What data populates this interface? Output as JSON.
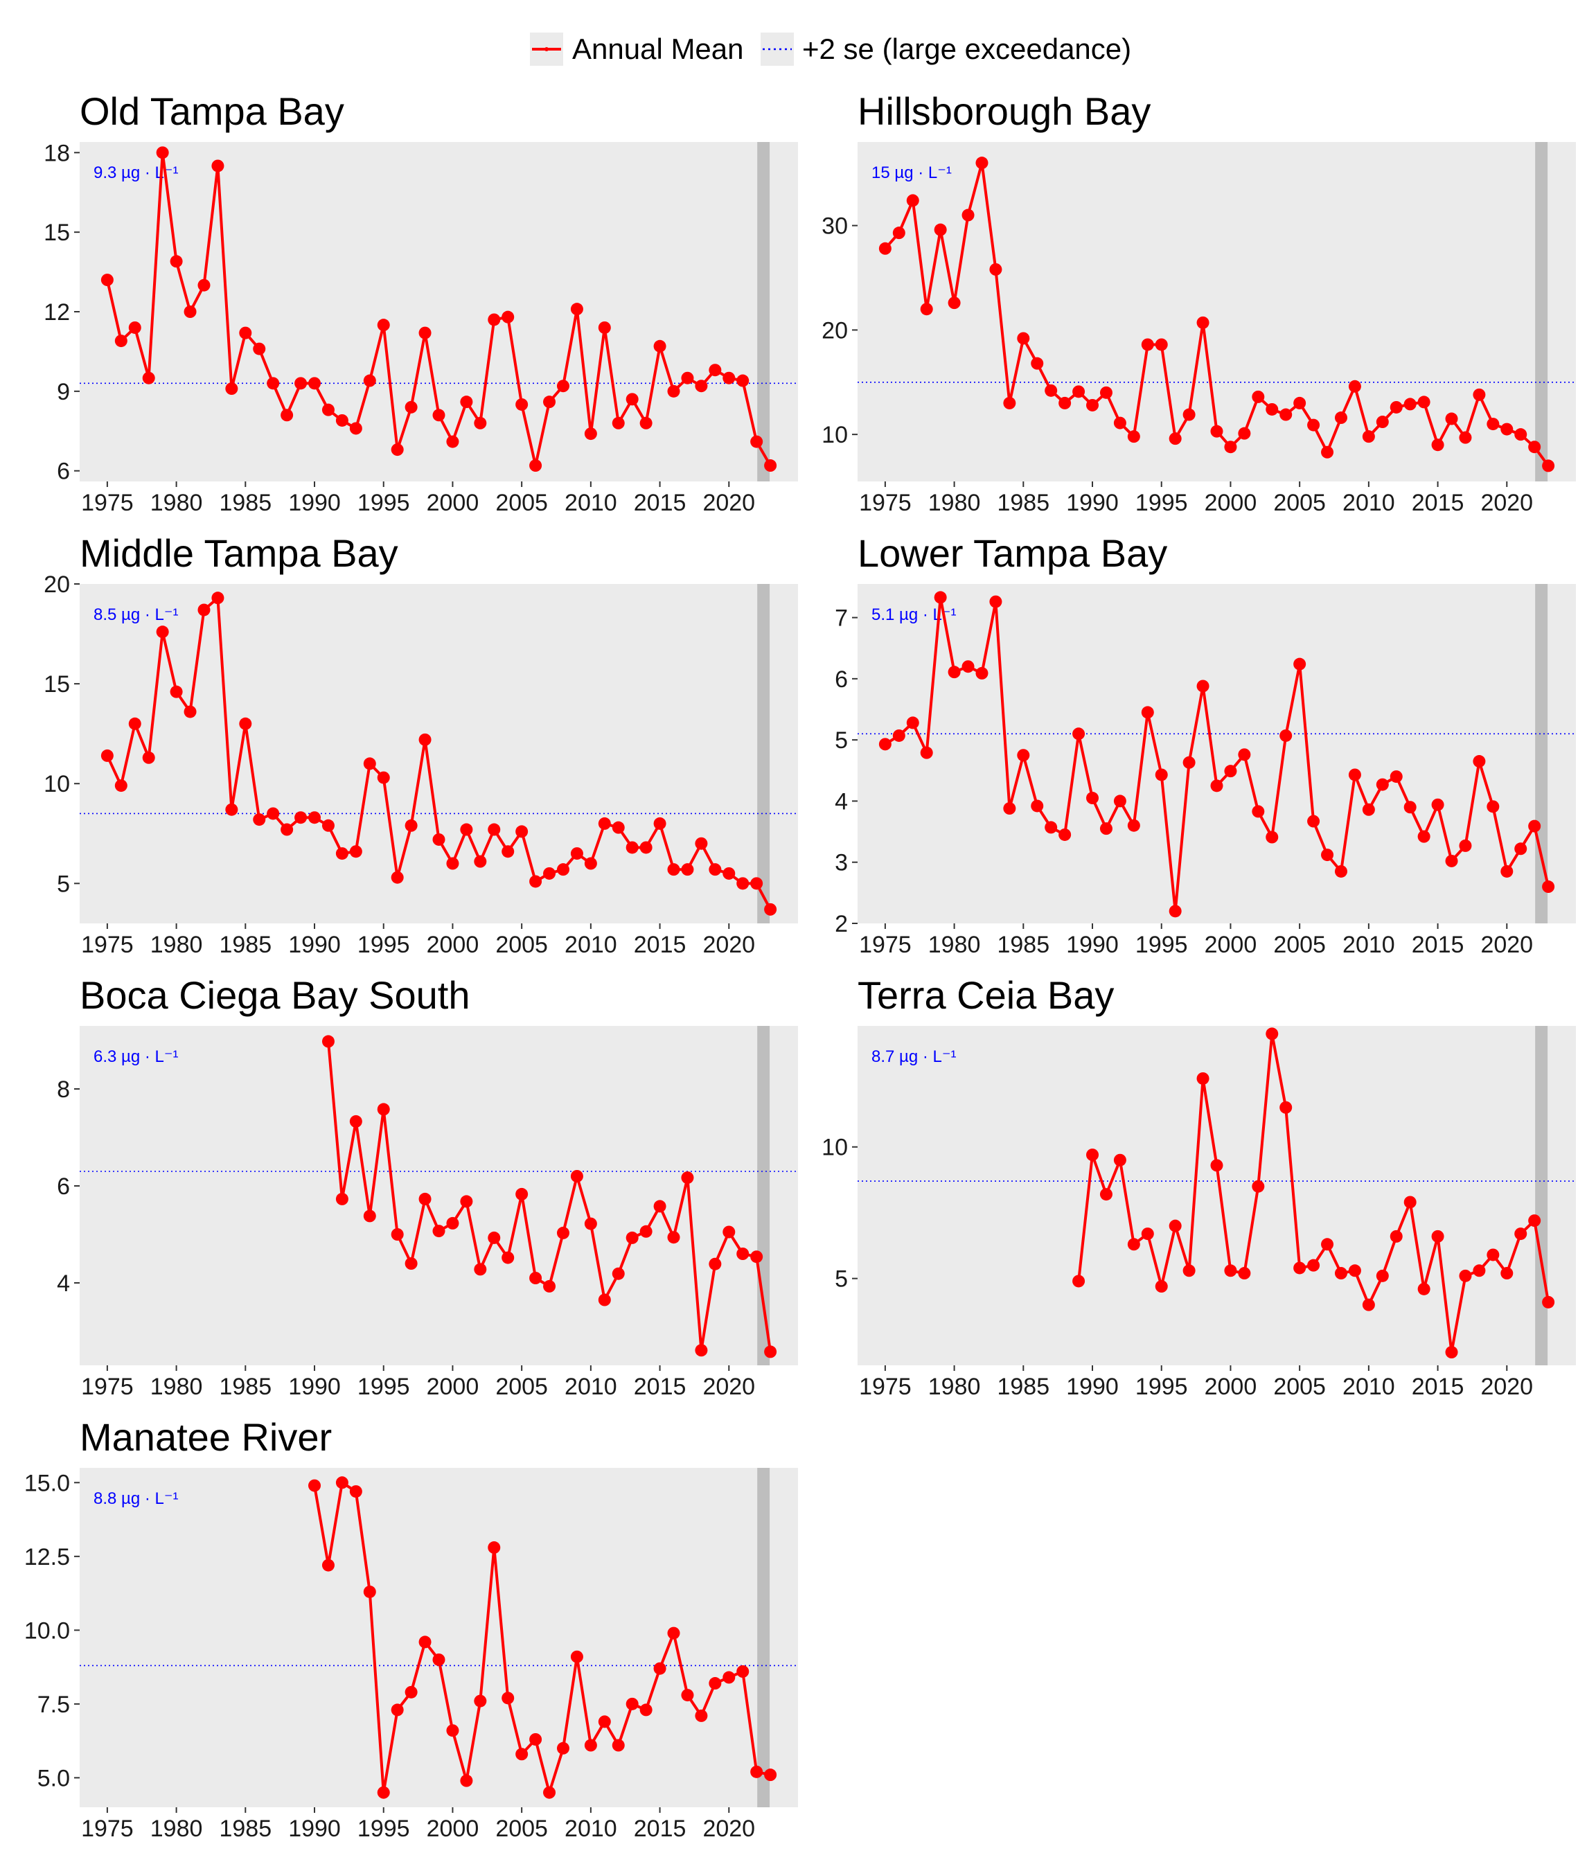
{
  "legend": {
    "series_label": "Annual Mean",
    "threshold_label": "+2 se (large exceedance)"
  },
  "colors": {
    "series": "#ff0000",
    "threshold": "#0000ff",
    "panel_background": "#ebebeb",
    "highlight_band": "#bebebe",
    "gridlines": "none"
  },
  "chart_data": [
    {
      "type": "line",
      "title": "Old Tampa Bay",
      "threshold": 9.3,
      "threshold_label": "9.3 µg · L⁻¹",
      "highlight_year": 2022,
      "xlim": [
        1973,
        2025
      ],
      "ylim": [
        5.6,
        18.4
      ],
      "yticks": [
        6,
        9,
        12,
        15,
        18
      ],
      "ytick_labels": [
        "6",
        "9",
        "12",
        "15",
        "18"
      ],
      "xticks": [
        1975,
        1980,
        1985,
        1990,
        1995,
        2000,
        2005,
        2010,
        2015,
        2020
      ],
      "x": [
        1975,
        1976,
        1977,
        1978,
        1979,
        1980,
        1981,
        1982,
        1983,
        1984,
        1985,
        1986,
        1987,
        1988,
        1989,
        1990,
        1991,
        1992,
        1993,
        1994,
        1995,
        1996,
        1997,
        1998,
        1999,
        2000,
        2001,
        2002,
        2003,
        2004,
        2005,
        2006,
        2007,
        2008,
        2009,
        2010,
        2011,
        2012,
        2013,
        2014,
        2015,
        2016,
        2017,
        2018,
        2019,
        2020,
        2021,
        2022,
        2023
      ],
      "values": [
        13.2,
        10.9,
        11.4,
        9.5,
        18.0,
        13.9,
        12.0,
        13.0,
        17.5,
        9.1,
        11.2,
        10.6,
        9.3,
        8.1,
        9.3,
        9.3,
        8.3,
        7.9,
        7.6,
        9.4,
        11.5,
        6.8,
        8.4,
        11.2,
        8.1,
        7.1,
        8.6,
        7.8,
        11.7,
        11.8,
        8.5,
        6.2,
        8.6,
        9.2,
        12.1,
        7.4,
        11.4,
        7.8,
        8.7,
        7.8,
        10.7,
        9.0,
        9.5,
        9.2,
        9.8,
        9.5,
        9.4,
        7.1,
        6.2
      ]
    },
    {
      "type": "line",
      "title": "Hillsborough Bay",
      "threshold": 15,
      "threshold_label": "15 µg · L⁻¹",
      "highlight_year": 2022,
      "xlim": [
        1973,
        2025
      ],
      "ylim": [
        5.5,
        38
      ],
      "yticks": [
        10,
        20,
        30
      ],
      "ytick_labels": [
        "10",
        "20",
        "30"
      ],
      "xticks": [
        1975,
        1980,
        1985,
        1990,
        1995,
        2000,
        2005,
        2010,
        2015,
        2020
      ],
      "x": [
        1975,
        1976,
        1977,
        1978,
        1979,
        1980,
        1981,
        1982,
        1983,
        1984,
        1985,
        1986,
        1987,
        1988,
        1989,
        1990,
        1991,
        1992,
        1993,
        1994,
        1995,
        1996,
        1997,
        1998,
        1999,
        2000,
        2001,
        2002,
        2003,
        2004,
        2005,
        2006,
        2007,
        2008,
        2009,
        2010,
        2011,
        2012,
        2013,
        2014,
        2015,
        2016,
        2017,
        2018,
        2019,
        2020,
        2021,
        2022,
        2023
      ],
      "values": [
        27.8,
        29.3,
        32.4,
        22.0,
        29.6,
        22.6,
        31.0,
        36.0,
        25.8,
        13.0,
        19.2,
        16.8,
        14.2,
        13.0,
        14.1,
        12.8,
        14.0,
        11.1,
        9.8,
        18.6,
        18.6,
        9.6,
        11.9,
        20.7,
        10.3,
        8.8,
        10.1,
        13.6,
        12.4,
        11.9,
        13.0,
        10.9,
        8.3,
        11.6,
        14.6,
        9.8,
        11.2,
        12.6,
        12.9,
        13.1,
        9.0,
        11.5,
        9.7,
        13.8,
        11.0,
        10.5,
        10.0,
        8.8,
        7.0
      ]
    },
    {
      "type": "line",
      "title": "Middle Tampa Bay",
      "threshold": 8.5,
      "threshold_label": "8.5 µg · L⁻¹",
      "highlight_year": 2022,
      "xlim": [
        1973,
        2025
      ],
      "ylim": [
        3,
        20
      ],
      "yticks": [
        5,
        10,
        15,
        20
      ],
      "ytick_labels": [
        "5",
        "10",
        "15",
        "20"
      ],
      "xticks": [
        1975,
        1980,
        1985,
        1990,
        1995,
        2000,
        2005,
        2010,
        2015,
        2020
      ],
      "x": [
        1975,
        1976,
        1977,
        1978,
        1979,
        1980,
        1981,
        1982,
        1983,
        1984,
        1985,
        1986,
        1987,
        1988,
        1989,
        1990,
        1991,
        1992,
        1993,
        1994,
        1995,
        1996,
        1997,
        1998,
        1999,
        2000,
        2001,
        2002,
        2003,
        2004,
        2005,
        2006,
        2007,
        2008,
        2009,
        2010,
        2011,
        2012,
        2013,
        2014,
        2015,
        2016,
        2017,
        2018,
        2019,
        2020,
        2021,
        2022,
        2023
      ],
      "values": [
        11.4,
        9.9,
        13.0,
        11.3,
        17.6,
        14.6,
        13.6,
        18.7,
        19.3,
        8.7,
        13.0,
        8.2,
        8.5,
        7.7,
        8.3,
        8.3,
        7.9,
        6.5,
        6.6,
        11.0,
        10.3,
        5.3,
        7.9,
        12.2,
        7.2,
        6.0,
        7.7,
        6.1,
        7.7,
        6.6,
        7.6,
        5.1,
        5.5,
        5.7,
        6.5,
        6.0,
        8.0,
        7.8,
        6.8,
        6.8,
        8.0,
        5.7,
        5.7,
        7.0,
        5.7,
        5.5,
        5.0,
        5.0,
        3.7
      ]
    },
    {
      "type": "line",
      "title": "Lower Tampa Bay",
      "threshold": 5.1,
      "threshold_label": "5.1 µg · L⁻¹",
      "highlight_year": 2022,
      "xlim": [
        1973,
        2025
      ],
      "ylim": [
        2,
        7.55
      ],
      "yticks": [
        2,
        3,
        4,
        5,
        6,
        7
      ],
      "ytick_labels": [
        "2",
        "3",
        "4",
        "5",
        "6",
        "7"
      ],
      "xticks": [
        1975,
        1980,
        1985,
        1990,
        1995,
        2000,
        2005,
        2010,
        2015,
        2020
      ],
      "x": [
        1975,
        1976,
        1977,
        1978,
        1979,
        1980,
        1981,
        1982,
        1983,
        1984,
        1985,
        1986,
        1987,
        1988,
        1989,
        1990,
        1991,
        1992,
        1993,
        1994,
        1995,
        1996,
        1997,
        1998,
        1999,
        2000,
        2001,
        2002,
        2003,
        2004,
        2005,
        2006,
        2007,
        2008,
        2009,
        2010,
        2011,
        2012,
        2013,
        2014,
        2015,
        2016,
        2017,
        2018,
        2019,
        2020,
        2021,
        2022,
        2023
      ],
      "values": [
        4.93,
        5.07,
        5.28,
        4.79,
        7.33,
        6.11,
        6.2,
        6.09,
        7.26,
        3.88,
        4.75,
        3.92,
        3.57,
        3.45,
        5.1,
        4.05,
        3.55,
        4.0,
        3.6,
        5.45,
        4.43,
        2.2,
        4.63,
        5.88,
        4.25,
        4.49,
        4.76,
        3.83,
        3.41,
        5.07,
        6.24,
        3.67,
        3.12,
        2.85,
        4.43,
        3.86,
        4.27,
        4.4,
        3.9,
        3.42,
        3.94,
        3.02,
        3.27,
        4.65,
        3.91,
        2.85,
        3.22,
        3.59,
        2.6
      ]
    },
    {
      "type": "line",
      "title": "Boca Ciega Bay South",
      "threshold": 6.3,
      "threshold_label": "6.3 µg · L⁻¹",
      "highlight_year": 2022,
      "xlim": [
        1973,
        2025
      ],
      "ylim": [
        2.3,
        9.3
      ],
      "yticks": [
        4,
        6,
        8
      ],
      "ytick_labels": [
        "4",
        "6",
        "8"
      ],
      "xticks": [
        1975,
        1980,
        1985,
        1990,
        1995,
        2000,
        2005,
        2010,
        2015,
        2020
      ],
      "x": [
        1991,
        1992,
        1993,
        1994,
        1995,
        1996,
        1997,
        1998,
        1999,
        2000,
        2001,
        2002,
        2003,
        2004,
        2005,
        2006,
        2007,
        2008,
        2009,
        2010,
        2011,
        2012,
        2013,
        2014,
        2015,
        2016,
        2017,
        2018,
        2019,
        2020,
        2021,
        2022,
        2023
      ],
      "values": [
        8.98,
        5.73,
        7.33,
        5.38,
        7.58,
        5.0,
        4.4,
        5.73,
        5.07,
        5.23,
        5.68,
        4.28,
        4.93,
        4.52,
        5.83,
        4.1,
        3.93,
        5.03,
        6.2,
        5.22,
        3.65,
        4.19,
        4.93,
        5.06,
        5.58,
        4.94,
        6.17,
        2.61,
        4.39,
        5.05,
        4.6,
        4.54,
        2.58
      ]
    },
    {
      "type": "line",
      "title": "Terra Ceia Bay",
      "threshold": 8.7,
      "threshold_label": "8.7 µg · L⁻¹",
      "highlight_year": 2022,
      "xlim": [
        1973,
        2025
      ],
      "ylim": [
        1.7,
        14.6
      ],
      "yticks": [
        5,
        10
      ],
      "ytick_labels": [
        "5",
        "10"
      ],
      "xticks": [
        1975,
        1980,
        1985,
        1990,
        1995,
        2000,
        2005,
        2010,
        2015,
        2020
      ],
      "x": [
        1989,
        1990,
        1991,
        1992,
        1993,
        1994,
        1995,
        1996,
        1997,
        1998,
        1999,
        2000,
        2001,
        2002,
        2003,
        2004,
        2005,
        2006,
        2007,
        2008,
        2009,
        2010,
        2011,
        2012,
        2013,
        2014,
        2015,
        2016,
        2017,
        2018,
        2019,
        2020,
        2021,
        2022,
        2023
      ],
      "values": [
        4.9,
        9.7,
        8.2,
        9.5,
        6.3,
        6.7,
        4.7,
        7.0,
        5.3,
        12.6,
        9.3,
        5.3,
        5.2,
        8.5,
        14.3,
        11.5,
        5.4,
        5.5,
        6.3,
        5.2,
        5.3,
        4.0,
        5.1,
        6.6,
        7.9,
        4.6,
        6.6,
        2.2,
        5.1,
        5.3,
        5.9,
        5.2,
        6.7,
        7.2,
        4.1
      ]
    },
    {
      "type": "line",
      "title": "Manatee River",
      "threshold": 8.8,
      "threshold_label": "8.8 µg · L⁻¹",
      "highlight_year": 2022,
      "xlim": [
        1973,
        2025
      ],
      "ylim": [
        4.0,
        15.5
      ],
      "yticks": [
        5,
        7.5,
        10,
        12.5,
        15
      ],
      "ytick_labels": [
        "5.0",
        "7.5",
        "10.0",
        "12.5",
        "15.0"
      ],
      "xticks": [
        1975,
        1980,
        1985,
        1990,
        1995,
        2000,
        2005,
        2010,
        2015,
        2020
      ],
      "x": [
        1990,
        1991,
        1992,
        1993,
        1994,
        1995,
        1996,
        1997,
        1998,
        1999,
        2000,
        2001,
        2002,
        2003,
        2004,
        2005,
        2006,
        2007,
        2008,
        2009,
        2010,
        2011,
        2012,
        2013,
        2014,
        2015,
        2016,
        2017,
        2018,
        2019,
        2020,
        2021,
        2022,
        2023
      ],
      "values": [
        14.9,
        12.2,
        15.0,
        14.7,
        11.3,
        4.5,
        7.3,
        7.9,
        9.6,
        9.0,
        6.6,
        4.9,
        7.6,
        12.8,
        7.7,
        5.8,
        6.3,
        4.5,
        6.0,
        9.1,
        6.1,
        6.9,
        6.1,
        7.5,
        7.3,
        8.7,
        9.9,
        7.8,
        7.1,
        8.2,
        8.4,
        8.6,
        5.2,
        5.1
      ]
    }
  ]
}
